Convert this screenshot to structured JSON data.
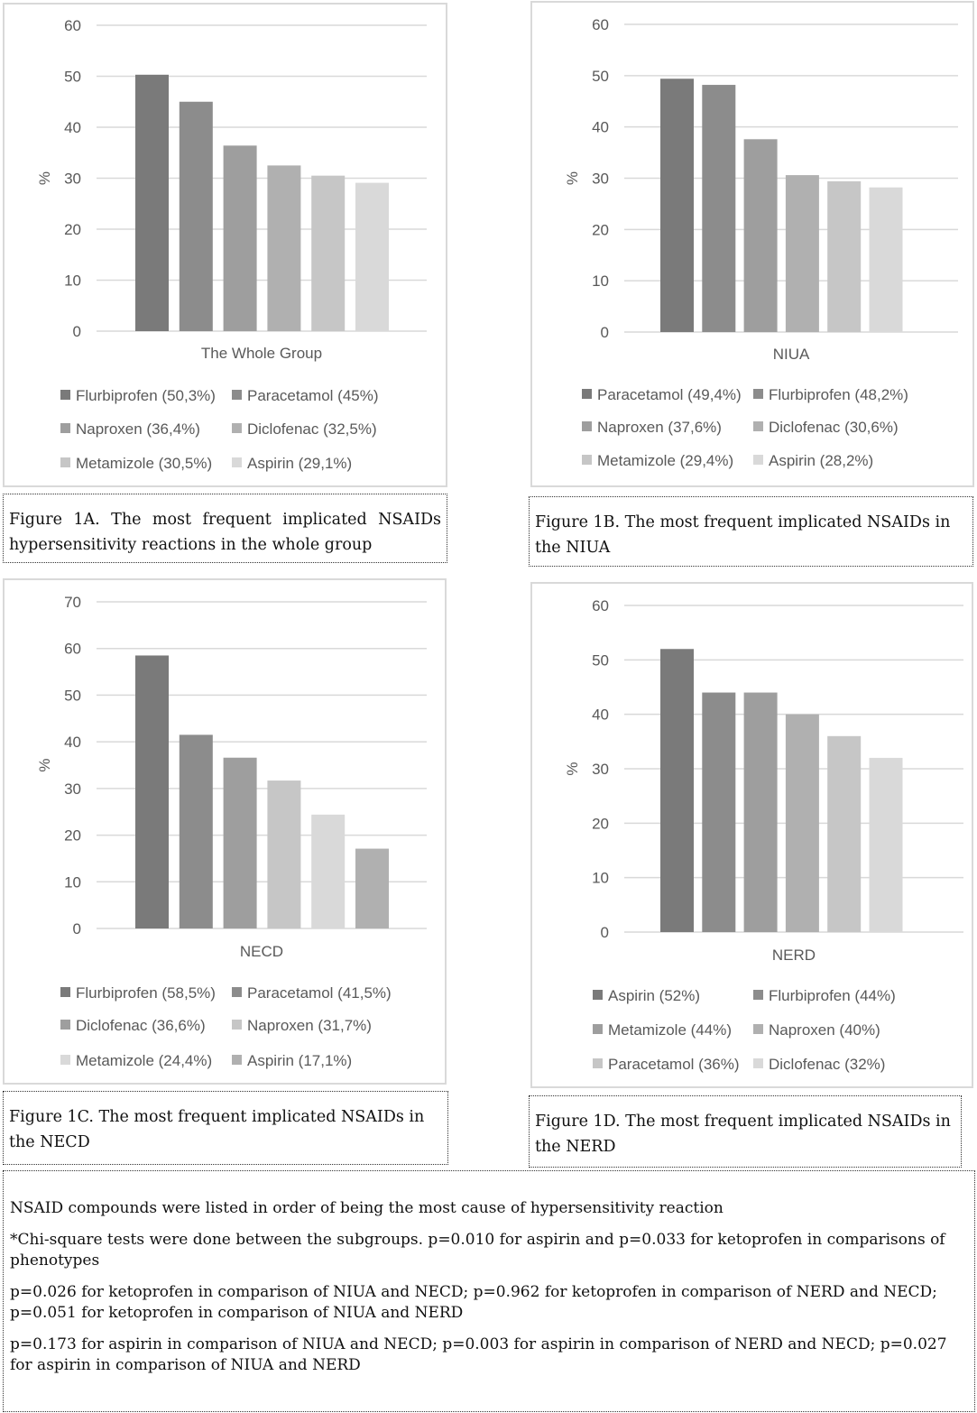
{
  "chart_data": [
    {
      "id": "1A",
      "type": "bar",
      "xlabel": "The Whole Group",
      "ylabel": "%",
      "ylim": [
        0,
        60
      ],
      "yticks": [
        "0",
        "10",
        "20",
        "30",
        "40",
        "50",
        "60"
      ],
      "grid": true,
      "legend_position": "bottom",
      "series": [
        {
          "name": "Flurbiprofen (50,3%)",
          "value": 50.3,
          "color": "#7a7a7a"
        },
        {
          "name": "Paracetamol (45%)",
          "value": 45,
          "color": "#8c8c8c"
        },
        {
          "name": "Naproxen (36,4%)",
          "value": 36.4,
          "color": "#9e9e9e"
        },
        {
          "name": "Diclofenac (32,5%)",
          "value": 32.5,
          "color": "#b0b0b0"
        },
        {
          "name": "Metamizole (30,5%)",
          "value": 30.5,
          "color": "#c6c6c6"
        },
        {
          "name": "Aspirin (29,1%)",
          "value": 29.1,
          "color": "#d9d9d9"
        }
      ]
    },
    {
      "id": "1B",
      "type": "bar",
      "xlabel": "NIUA",
      "ylabel": "%",
      "ylim": [
        0,
        60
      ],
      "yticks": [
        "0",
        "10",
        "20",
        "30",
        "40",
        "50",
        "60"
      ],
      "grid": true,
      "legend_position": "bottom",
      "series": [
        {
          "name": "Paracetamol (49,4%)",
          "value": 49.4,
          "color": "#7a7a7a"
        },
        {
          "name": "Flurbiprofen (48,2%)",
          "value": 48.2,
          "color": "#8c8c8c"
        },
        {
          "name": "Naproxen (37,6%)",
          "value": 37.6,
          "color": "#9e9e9e"
        },
        {
          "name": "Diclofenac (30,6%)",
          "value": 30.6,
          "color": "#b0b0b0"
        },
        {
          "name": "Metamizole (29,4%)",
          "value": 29.4,
          "color": "#c6c6c6"
        },
        {
          "name": "Aspirin (28,2%)",
          "value": 28.2,
          "color": "#d9d9d9"
        }
      ]
    },
    {
      "id": "1C",
      "type": "bar",
      "xlabel": "NECD",
      "ylabel": "%",
      "ylim": [
        0,
        70
      ],
      "yticks": [
        "0",
        "10",
        "20",
        "30",
        "40",
        "50",
        "60",
        "70"
      ],
      "grid": true,
      "legend_position": "bottom",
      "series": [
        {
          "name": "Flurbiprofen (58,5%)",
          "value": 58.5,
          "color": "#7a7a7a"
        },
        {
          "name": "Paracetamol (41,5%)",
          "value": 41.5,
          "color": "#8c8c8c"
        },
        {
          "name": "Diclofenac (36,6%)",
          "value": 36.6,
          "color": "#9e9e9e"
        },
        {
          "name": "Naproxen (31,7%)",
          "value": 31.7,
          "color": "#c6c6c6"
        },
        {
          "name": "Metamizole (24,4%)",
          "value": 24.4,
          "color": "#d9d9d9"
        },
        {
          "name": "Aspirin (17,1%)",
          "value": 17.1,
          "color": "#b0b0b0"
        }
      ]
    },
    {
      "id": "1D",
      "type": "bar",
      "xlabel": "NERD",
      "ylabel": "%",
      "ylim": [
        0,
        60
      ],
      "yticks": [
        "0",
        "10",
        "20",
        "30",
        "40",
        "50",
        "60"
      ],
      "grid": true,
      "legend_position": "bottom",
      "series": [
        {
          "name": "Aspirin (52%)",
          "value": 52,
          "color": "#7a7a7a"
        },
        {
          "name": "Flurbiprofen (44%)",
          "value": 44,
          "color": "#8c8c8c"
        },
        {
          "name": "Metamizole (44%)",
          "value": 44,
          "color": "#9e9e9e"
        },
        {
          "name": "Naproxen (40%)",
          "value": 40,
          "color": "#b0b0b0"
        },
        {
          "name": "Paracetamol (36%)",
          "value": 36,
          "color": "#c6c6c6"
        },
        {
          "name": "Diclofenac (32%)",
          "value": 32,
          "color": "#d9d9d9"
        }
      ]
    }
  ],
  "captions": {
    "fig1a": "Figure 1A. The most frequent implicated NSAIDs hypersensitivity reactions in the whole group",
    "fig1b": "Figure 1B. The most frequent implicated NSAIDs in the NIUA",
    "fig1c": "Figure 1C. The most frequent implicated NSAIDs in the NECD",
    "fig1d": "Figure 1D. The most frequent implicated NSAIDs in the NERD"
  },
  "notes": [
    "NSAID compounds were listed in order of being the most cause of hypersensitivity reaction",
    "*Chi-square tests were done between the subgroups. p=0.010 for aspirin and p=0.033 for ketoprofen in comparisons of phenotypes",
    "p=0.026 for ketoprofen in comparison of NIUA and NECD; p=0.962 for ketoprofen in comparison of NERD and NECD; p=0.051 for ketoprofen in comparison of NIUA and NERD",
    "p=0.173 for aspirin in comparison of NIUA and NECD; p=0.003 for aspirin in comparison of NERD and NECD; p=0.027 for aspirin in comparison of NIUA and NERD"
  ]
}
